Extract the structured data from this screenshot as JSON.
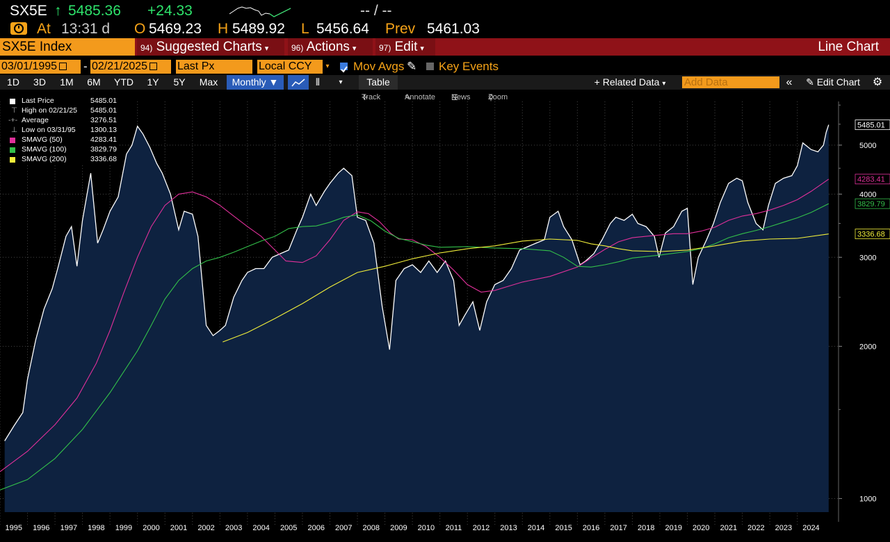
{
  "quote": {
    "ticker": "SX5E",
    "arrow": "↑",
    "last": "5485.36",
    "change": "+24.33",
    "bidask": "-- / --",
    "at_label": "At",
    "time": "13:31 d",
    "open_label": "O",
    "open": "5469.23",
    "high_label": "H",
    "high": "5489.92",
    "low_label": "L",
    "low": "5456.64",
    "prev_label": "Prev",
    "prev": "5461.03"
  },
  "menubar": {
    "security": "SX5E Index",
    "suggested_num": "94)",
    "suggested": "Suggested Charts",
    "actions_num": "96)",
    "actions": "Actions",
    "edit_num": "97)",
    "edit": "Edit",
    "title": "Line Chart"
  },
  "params": {
    "start_date": "03/01/1995",
    "dash": "-",
    "end_date": "02/21/2025",
    "field": "Last Px",
    "currency": "Local CCY",
    "mov_avgs": "Mov Avgs",
    "key_events": "Key Events"
  },
  "toolbar": {
    "ranges": [
      "1D",
      "3D",
      "1M",
      "6M",
      "YTD",
      "1Y",
      "5Y",
      "Max"
    ],
    "frequency": "Monthly",
    "table": "Table",
    "related": "Related Data",
    "add_data_placeholder": "Add Data",
    "edit_chart": "Edit Chart"
  },
  "tools": {
    "track": "Track",
    "annotate": "Annotate",
    "news": "News",
    "zoom": "Zoom"
  },
  "legend": [
    {
      "label": "Last Price",
      "value": "5485.01",
      "color": "#ffffff"
    },
    {
      "label": "High on 02/21/25",
      "value": "5485.01",
      "color": ""
    },
    {
      "label": "Average",
      "value": "3276.51",
      "color": ""
    },
    {
      "label": "Low on 03/31/95",
      "value": "1300.13",
      "color": ""
    },
    {
      "label": "SMAVG (50)",
      "value": "4283.41",
      "color": "#e0309a"
    },
    {
      "label": "SMAVG (100)",
      "value": "3829.79",
      "color": "#33c04a"
    },
    {
      "label": "SMAVG (200)",
      "value": "3336.68",
      "color": "#f2ef3a"
    }
  ],
  "chart_data": {
    "type": "area",
    "y_scale": "log",
    "ylim": [
      940,
      6100
    ],
    "y_ticks": [
      1000,
      2000,
      3000,
      4000,
      5000
    ],
    "x_ticks": [
      "1995",
      "1996",
      "1997",
      "1998",
      "1999",
      "2000",
      "2001",
      "2002",
      "2003",
      "2004",
      "2005",
      "2006",
      "2007",
      "2008",
      "2009",
      "2010",
      "2011",
      "2012",
      "2013",
      "2014",
      "2015",
      "2016",
      "2017",
      "2018",
      "2019",
      "2020",
      "2021",
      "2022",
      "2023",
      "2024"
    ],
    "xlim": [
      1995.0,
      2025.5
    ],
    "last_labels": [
      {
        "text": "5485.01",
        "value": 5485.01,
        "color": "#ffffff"
      },
      {
        "text": "4283.41",
        "value": 4283.41,
        "color": "#e0309a"
      },
      {
        "text": "3829.79",
        "value": 3829.79,
        "color": "#33c04a"
      },
      {
        "text": "3336.68",
        "value": 3336.68,
        "color": "#f2ef3a"
      }
    ],
    "series": [
      {
        "name": "Last Price",
        "color": "#ffffff",
        "x": [
          1995.17,
          1995.5,
          1995.83,
          1996.0,
          1996.3,
          1996.6,
          1996.9,
          1997.1,
          1997.4,
          1997.6,
          1997.8,
          1998.0,
          1998.3,
          1998.55,
          1998.75,
          1999.0,
          1999.3,
          1999.6,
          1999.8,
          2000.0,
          2000.2,
          2000.45,
          2000.7,
          2000.9,
          2001.2,
          2001.5,
          2001.7,
          2002.0,
          2002.2,
          2002.5,
          2002.75,
          2003.0,
          2003.2,
          2003.5,
          2003.8,
          2004.0,
          2004.3,
          2004.6,
          2004.9,
          2005.2,
          2005.5,
          2005.8,
          2006.0,
          2006.3,
          2006.5,
          2006.8,
          2007.0,
          2007.3,
          2007.5,
          2007.8,
          2008.0,
          2008.3,
          2008.6,
          2008.9,
          2009.17,
          2009.4,
          2009.7,
          2010.0,
          2010.3,
          2010.6,
          2010.9,
          2011.2,
          2011.5,
          2011.7,
          2011.9,
          2012.2,
          2012.45,
          2012.7,
          2013.0,
          2013.3,
          2013.6,
          2013.9,
          2014.2,
          2014.5,
          2014.8,
          2015.0,
          2015.3,
          2015.5,
          2015.8,
          2016.1,
          2016.3,
          2016.6,
          2016.9,
          2017.2,
          2017.4,
          2017.7,
          2018.0,
          2018.2,
          2018.5,
          2018.8,
          2018.97,
          2019.2,
          2019.5,
          2019.8,
          2020.0,
          2020.2,
          2020.4,
          2020.7,
          2020.95,
          2021.2,
          2021.5,
          2021.8,
          2022.0,
          2022.2,
          2022.5,
          2022.75,
          2022.95,
          2023.2,
          2023.5,
          2023.8,
          2024.0,
          2024.2,
          2024.5,
          2024.75,
          2024.95,
          2025.05,
          2025.14
        ],
        "values": [
          1300,
          1390,
          1480,
          1720,
          2060,
          2370,
          2600,
          2850,
          3300,
          3450,
          2880,
          3550,
          4400,
          3200,
          3400,
          3700,
          3950,
          4800,
          5000,
          5450,
          5260,
          4950,
          4600,
          4400,
          4000,
          3400,
          3700,
          3650,
          3300,
          2200,
          2100,
          2150,
          2200,
          2500,
          2700,
          2800,
          2850,
          2850,
          3000,
          3050,
          3100,
          3400,
          3600,
          4000,
          3800,
          4050,
          4200,
          4400,
          4500,
          4350,
          3600,
          3550,
          3200,
          2400,
          1970,
          2700,
          2850,
          2900,
          2800,
          2950,
          2800,
          2950,
          2700,
          2200,
          2300,
          2450,
          2150,
          2450,
          2650,
          2700,
          2850,
          3100,
          3150,
          3200,
          3250,
          3600,
          3700,
          3450,
          3250,
          2900,
          2950,
          3050,
          3250,
          3500,
          3600,
          3550,
          3650,
          3500,
          3450,
          3300,
          3000,
          3350,
          3450,
          3700,
          3750,
          2650,
          3000,
          3250,
          3500,
          3850,
          4200,
          4300,
          4250,
          3850,
          3500,
          3400,
          3800,
          4200,
          4300,
          4350,
          4550,
          5050,
          4900,
          4850,
          5000,
          5300,
          5485
        ]
      },
      {
        "name": "SMAVG (50)",
        "color": "#e0309a",
        "x": [
          1995.0,
          1996.0,
          1997.0,
          1997.8,
          1998.5,
          1999.0,
          1999.5,
          2000.0,
          2000.5,
          2001.0,
          2001.5,
          2002.0,
          2002.5,
          2003.0,
          2003.5,
          2004.0,
          2004.5,
          2005.0,
          2005.4,
          2006.0,
          2006.5,
          2007.0,
          2007.5,
          2008.0,
          2008.4,
          2008.8,
          2009.2,
          2009.5,
          2010.0,
          2010.5,
          2011.0,
          2011.5,
          2012.0,
          2012.5,
          2013.0,
          2013.5,
          2014.0,
          2015.0,
          2016.0,
          2016.5,
          2017.0,
          2017.5,
          2018.0,
          2018.5,
          2019.0,
          2019.5,
          2020.0,
          2020.5,
          2021.0,
          2021.5,
          2022.0,
          2022.5,
          2023.0,
          2023.5,
          2024.0,
          2024.5,
          2025.14
        ],
        "values": [
          1130,
          1240,
          1400,
          1580,
          1850,
          2150,
          2550,
          3000,
          3450,
          3800,
          4000,
          4040,
          3950,
          3800,
          3620,
          3450,
          3300,
          3100,
          2950,
          2930,
          3020,
          3250,
          3550,
          3690,
          3660,
          3530,
          3350,
          3260,
          3250,
          3150,
          3000,
          2830,
          2650,
          2560,
          2580,
          2630,
          2680,
          2750,
          2870,
          2990,
          3110,
          3220,
          3280,
          3300,
          3320,
          3340,
          3340,
          3380,
          3440,
          3550,
          3620,
          3660,
          3720,
          3800,
          3900,
          4050,
          4283
        ]
      },
      {
        "name": "SMAVG (100)",
        "color": "#33c04a",
        "x": [
          1995.0,
          1996.0,
          1997.0,
          1998.0,
          1999.0,
          2000.0,
          2000.5,
          2001.0,
          2001.5,
          2002.0,
          2002.5,
          2003.0,
          2003.5,
          2004.0,
          2004.5,
          2005.0,
          2005.5,
          2006.0,
          2006.5,
          2007.0,
          2007.5,
          2008.0,
          2008.5,
          2009.0,
          2009.5,
          2010.0,
          2010.5,
          2011.0,
          2012.0,
          2013.0,
          2014.0,
          2015.0,
          2015.5,
          2016.0,
          2016.5,
          2017.0,
          2017.5,
          2018.0,
          2019.0,
          2020.0,
          2020.5,
          2021.0,
          2021.5,
          2022.0,
          2022.5,
          2023.0,
          2023.5,
          2024.0,
          2024.5,
          2025.14
        ],
        "values": [
          1040,
          1090,
          1200,
          1370,
          1620,
          1960,
          2200,
          2480,
          2700,
          2850,
          2950,
          3000,
          3070,
          3150,
          3230,
          3300,
          3420,
          3450,
          3460,
          3520,
          3600,
          3640,
          3540,
          3380,
          3270,
          3220,
          3170,
          3140,
          3150,
          3130,
          3120,
          3090,
          3000,
          2880,
          2870,
          2900,
          2940,
          2990,
          3030,
          3080,
          3120,
          3190,
          3280,
          3340,
          3390,
          3450,
          3520,
          3590,
          3680,
          3830
        ]
      },
      {
        "name": "SMAVG (200)",
        "color": "#f2ef3a",
        "x": [
          2003.1,
          2004.0,
          2005.0,
          2006.0,
          2007.0,
          2008.0,
          2009.0,
          2010.0,
          2011.0,
          2012.0,
          2013.0,
          2014.0,
          2015.0,
          2016.0,
          2016.5,
          2017.0,
          2017.5,
          2018.0,
          2019.0,
          2020.0,
          2021.0,
          2022.0,
          2023.0,
          2024.0,
          2025.14
        ],
        "values": [
          2040,
          2130,
          2270,
          2430,
          2620,
          2800,
          2880,
          2980,
          3060,
          3120,
          3160,
          3230,
          3260,
          3240,
          3190,
          3160,
          3120,
          3090,
          3080,
          3100,
          3160,
          3230,
          3260,
          3270,
          3336
        ]
      }
    ]
  }
}
